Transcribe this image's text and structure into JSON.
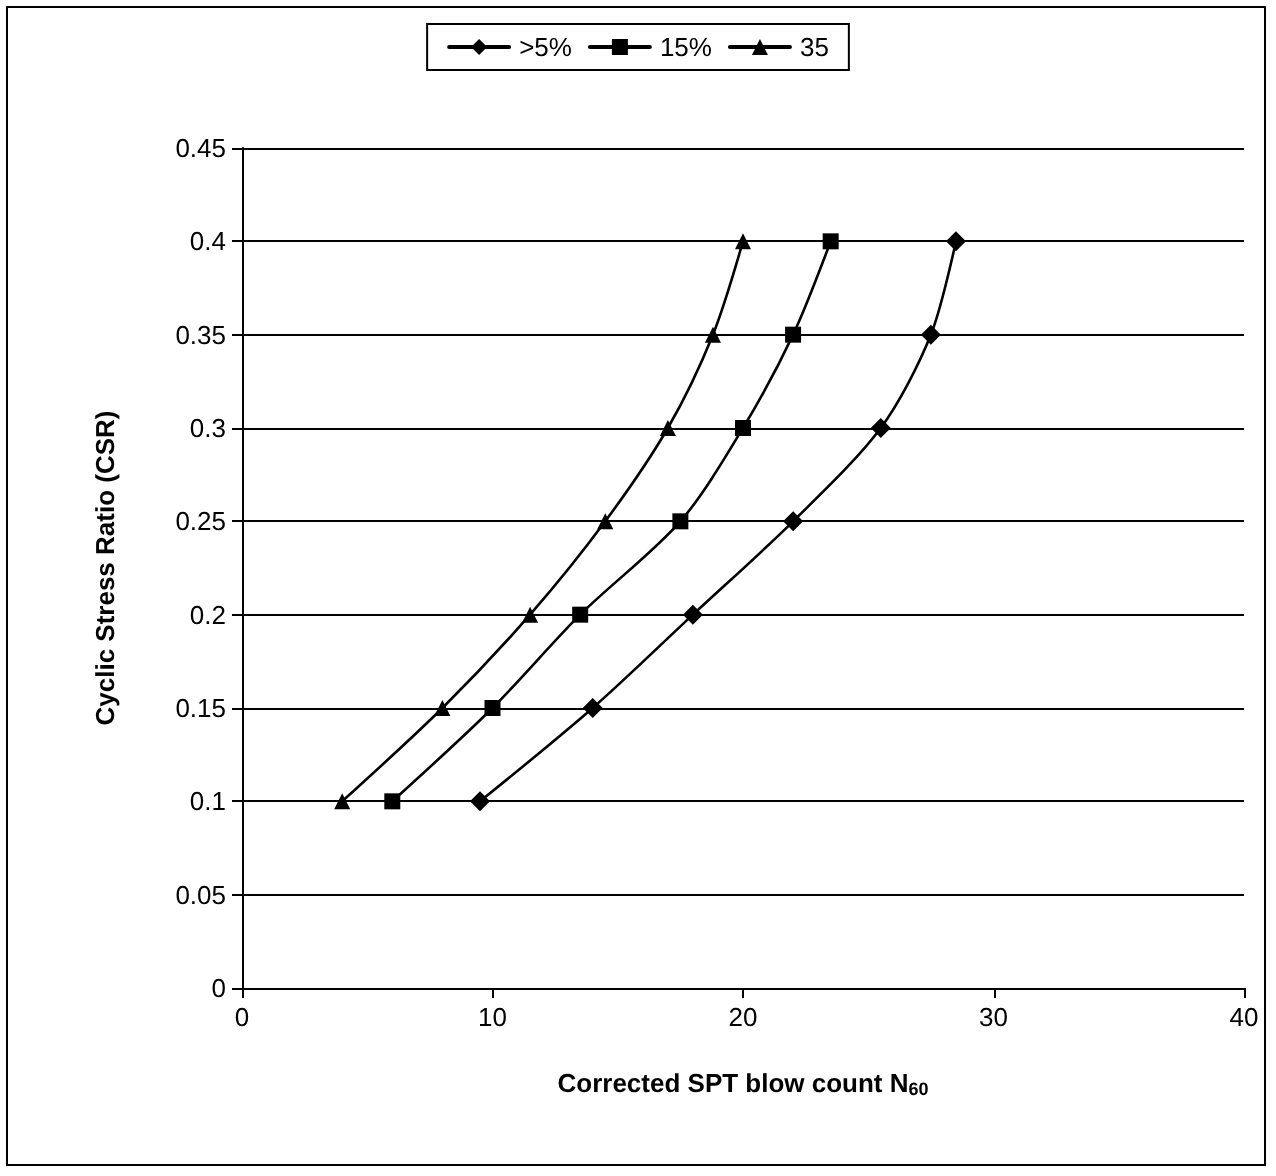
{
  "chart_data": {
    "type": "line",
    "xlabel": "Corrected SPT blow count N$_{60}$",
    "ylabel": "Cyclic Stress Ratio (CSR)",
    "xlim": [
      0,
      40
    ],
    "xticks": [
      0,
      10,
      20,
      30,
      40
    ],
    "ylim": [
      0,
      0.45
    ],
    "yticks": [
      0,
      0.05,
      0.1,
      0.15,
      0.2,
      0.25,
      0.3,
      0.35,
      0.4,
      0.45
    ],
    "grid": "y",
    "legend": "top",
    "line_style": "solid",
    "series": [
      {
        "name": ">5%",
        "color": "#000000",
        "marker": "diamond",
        "x": [
          9.5,
          14,
          18,
          22,
          25.5,
          27.5,
          28.5
        ],
        "values": [
          0.1,
          0.15,
          0.2,
          0.25,
          0.3,
          0.35,
          0.4
        ]
      },
      {
        "name": "15%",
        "color": "#000000",
        "marker": "square",
        "x": [
          6,
          10,
          13.5,
          17.5,
          20,
          22,
          23.5
        ],
        "values": [
          0.1,
          0.15,
          0.2,
          0.25,
          0.3,
          0.35,
          0.4
        ]
      },
      {
        "name": "35",
        "color": "#000000",
        "marker": "triangle",
        "x": [
          4,
          8,
          11.5,
          14.5,
          17,
          18.8,
          20
        ],
        "values": [
          0.1,
          0.15,
          0.2,
          0.25,
          0.3,
          0.35,
          0.4
        ]
      }
    ]
  }
}
